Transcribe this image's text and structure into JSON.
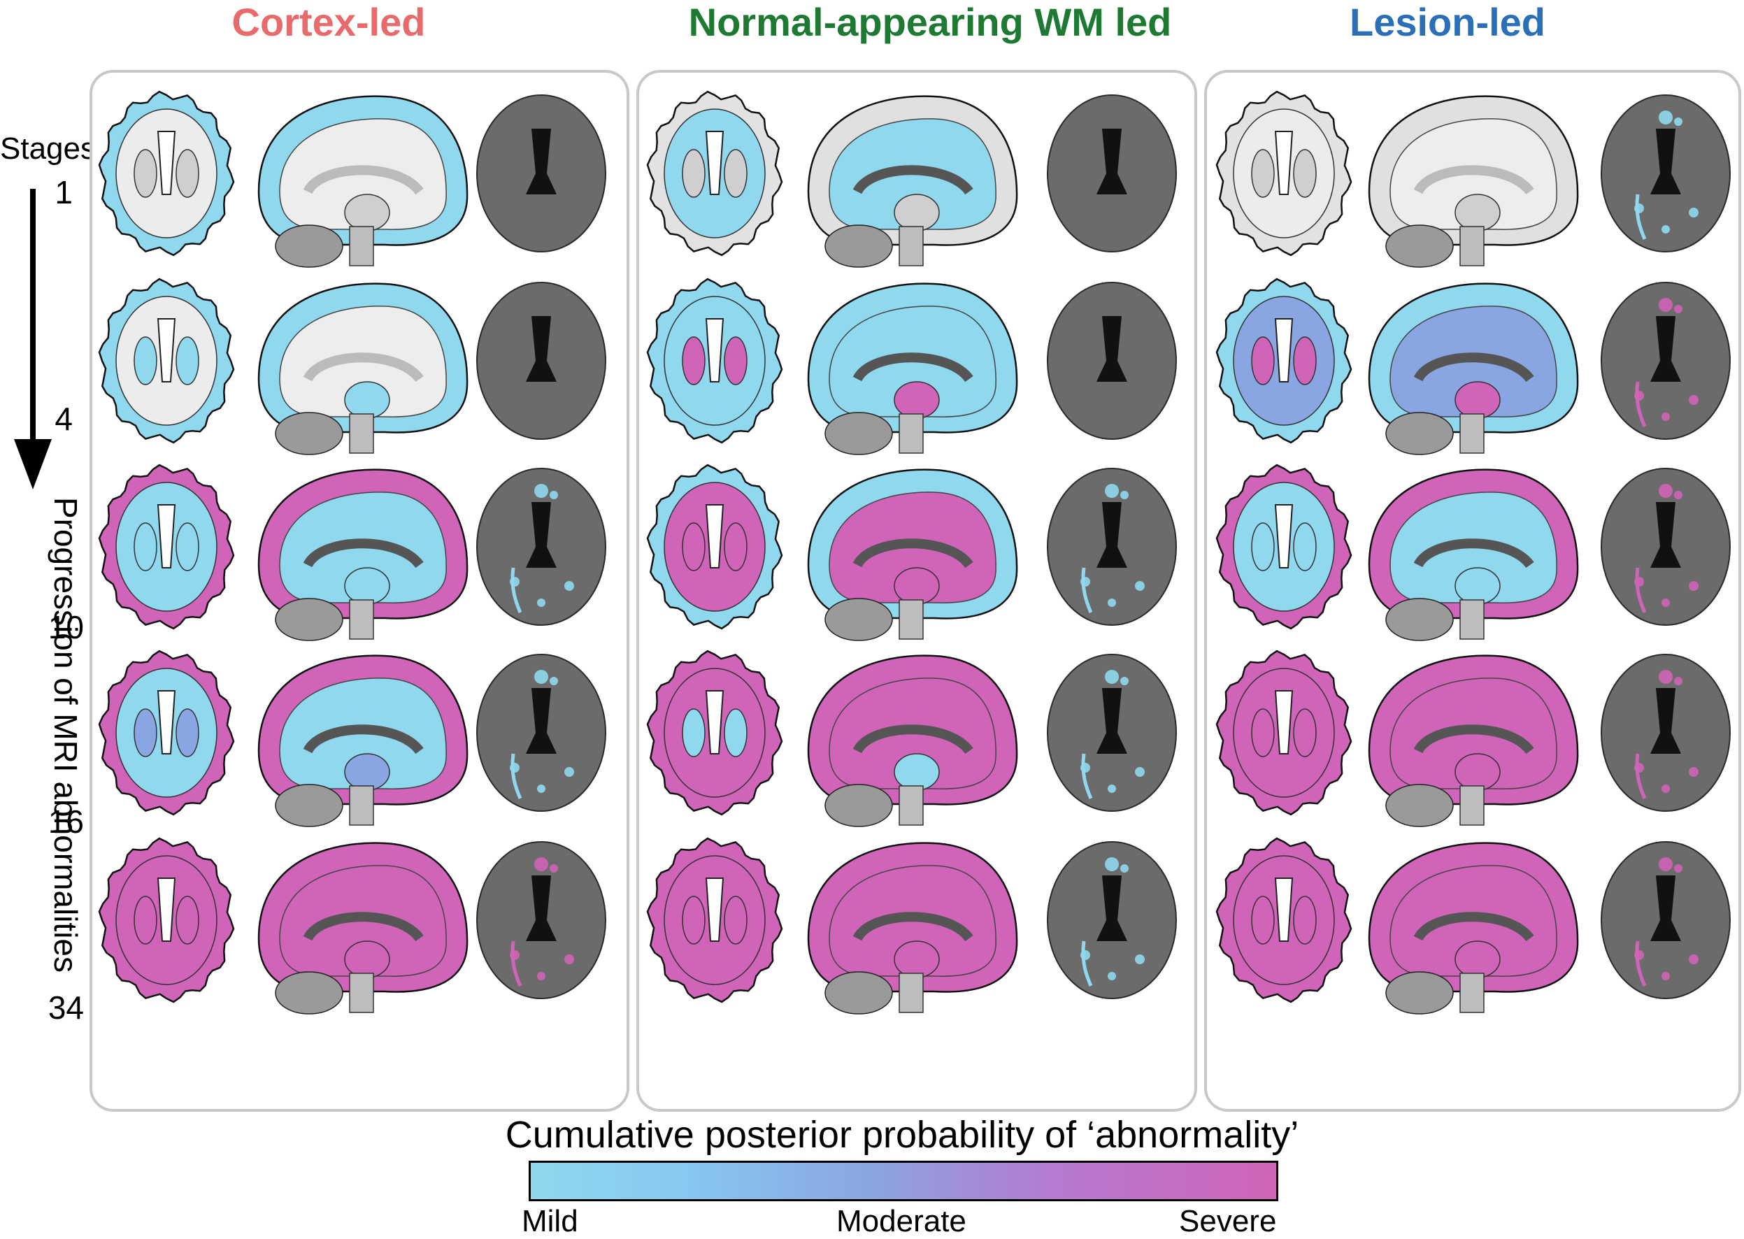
{
  "subtypes": [
    {
      "title": "Cortex-led",
      "color": "#e86a6a"
    },
    {
      "title": "Normal-appearing WM led",
      "color": "#1e7a33"
    },
    {
      "title": "Lesion-led",
      "color": "#2a6fb8"
    }
  ],
  "stages": {
    "header": "Stages",
    "values": [
      "1",
      "4",
      "10",
      "16",
      "34"
    ]
  },
  "axis_label": "Progression of MRI abnormalities",
  "colorbar": {
    "title": "Cumulative posterior probability of ‘abnormality’",
    "labels": {
      "low": "Mild",
      "mid": "Moderate",
      "high": "Severe"
    },
    "colors": {
      "mild": "#8fd8ee",
      "moderate": "#8aa6e2",
      "severe": "#d064b8"
    }
  },
  "severity_grid": {
    "levels_legend": [
      "none",
      "mild",
      "moderate",
      "severe"
    ],
    "cortex_led": [
      {
        "cortex": "mild",
        "deep_gm": "none",
        "nawm": "none",
        "lesion": "none"
      },
      {
        "cortex": "mild",
        "deep_gm": "mild",
        "nawm": "none",
        "lesion": "none"
      },
      {
        "cortex": "severe",
        "deep_gm": "mild",
        "nawm": "mild",
        "lesion": "mild"
      },
      {
        "cortex": "severe",
        "deep_gm": "moderate",
        "nawm": "mild",
        "lesion": "mild"
      },
      {
        "cortex": "severe",
        "deep_gm": "severe",
        "nawm": "severe",
        "lesion": "severe"
      }
    ],
    "nawm_led": [
      {
        "cortex": "none",
        "deep_gm": "none",
        "nawm": "mild",
        "lesion": "none"
      },
      {
        "cortex": "mild",
        "deep_gm": "severe",
        "nawm": "mild",
        "lesion": "none"
      },
      {
        "cortex": "mild",
        "deep_gm": "severe",
        "nawm": "severe",
        "lesion": "mild"
      },
      {
        "cortex": "severe",
        "deep_gm": "mild",
        "nawm": "severe",
        "lesion": "mild"
      },
      {
        "cortex": "severe",
        "deep_gm": "severe",
        "nawm": "severe",
        "lesion": "mild"
      }
    ],
    "lesion_led": [
      {
        "cortex": "none",
        "deep_gm": "none",
        "nawm": "none",
        "lesion": "mild"
      },
      {
        "cortex": "mild",
        "deep_gm": "severe",
        "nawm": "moderate",
        "lesion": "severe"
      },
      {
        "cortex": "severe",
        "deep_gm": "mild",
        "nawm": "mild",
        "lesion": "severe"
      },
      {
        "cortex": "severe",
        "deep_gm": "severe",
        "nawm": "severe",
        "lesion": "severe"
      },
      {
        "cortex": "severe",
        "deep_gm": "severe",
        "nawm": "severe",
        "lesion": "severe"
      }
    ]
  }
}
